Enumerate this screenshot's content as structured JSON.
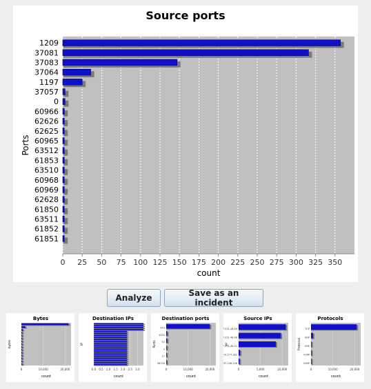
{
  "actions": {
    "analyze_label": "Analyze",
    "save_label": "Save as an incident"
  },
  "chart_data": {
    "type": "bar",
    "orientation": "horizontal",
    "title": "Source ports",
    "xlabel": "count",
    "ylabel": "Ports",
    "xlim": [
      0,
      375
    ],
    "xticks": [
      0,
      25,
      50,
      75,
      100,
      125,
      150,
      175,
      200,
      225,
      250,
      275,
      300,
      325,
      350
    ],
    "grid": true,
    "legend": "none",
    "bar_color": "#1010c8",
    "plot_bg": "#c0c0c0",
    "categories": [
      "1209",
      "37081",
      "37083",
      "37064",
      "1197",
      "37057",
      "0",
      "60966",
      "62626",
      "62625",
      "60965",
      "63512",
      "61853",
      "63510",
      "60968",
      "60969",
      "62628",
      "61850",
      "63511",
      "61852",
      "61851"
    ],
    "values": [
      357,
      316,
      147,
      36,
      25,
      3,
      3,
      2,
      2,
      2,
      2,
      2,
      2,
      2,
      2,
      2,
      2,
      2,
      2,
      2,
      2
    ]
  },
  "thumbnails": [
    {
      "title": "Bytes",
      "ylabel": "bytes",
      "xlabel": "count",
      "ticks": [
        "0",
        "10,000",
        "20,000"
      ],
      "values": [
        0.95,
        0.08,
        0.03,
        0.02,
        0.02,
        0.02,
        0.02,
        0.02,
        0.02,
        0.02,
        0.02,
        0.02,
        0.02,
        0.02,
        0.02
      ]
    },
    {
      "title": "Destination IPs",
      "ylabel": "IP",
      "xlabel": "count",
      "ticks": [
        "0.0",
        "0.5",
        "1.0",
        "1.5",
        "2.0",
        "2.5",
        "3.0"
      ],
      "values": [
        1,
        1,
        1,
        1,
        0.67,
        0.67,
        0.67,
        0.67,
        0.67,
        0.67,
        0.67,
        0.67,
        0.67,
        0.67,
        0.67,
        0.67,
        0.67,
        0.67,
        0.67,
        0.67,
        0.67,
        0.67
      ]
    },
    {
      "title": "Destination ports",
      "ylabel": "Ports",
      "xlabel": "count",
      "ticks": [
        "0",
        "10,000",
        "20,000"
      ],
      "labels": [
        "443",
        "1025",
        "53",
        "3",
        "17",
        "56726"
      ],
      "values": [
        0.88,
        0.02,
        0.02,
        0.01,
        0.01,
        0.01
      ]
    },
    {
      "title": "Source IPs",
      "ylabel": "IP",
      "xlabel": "count",
      "ticks": [
        "0",
        "5,000",
        "10,000"
      ],
      "labels": [
        "147.251.48.49",
        "147.251.48.48",
        "147.251.48.21",
        "64.15.177.182",
        "202.97.238.228"
      ],
      "values": [
        0.95,
        0.85,
        0.75,
        0.03,
        0.02
      ]
    },
    {
      "title": "Protocols",
      "ylabel": "Protocol",
      "xlabel": "count",
      "ticks": [
        "0",
        "10,000",
        "20,000"
      ],
      "labels": [
        "TCP",
        "UDP",
        "GRE",
        "ICMP",
        "IGMP"
      ],
      "values": [
        0.92,
        0.04,
        0.01,
        0.01,
        0.01
      ]
    }
  ]
}
